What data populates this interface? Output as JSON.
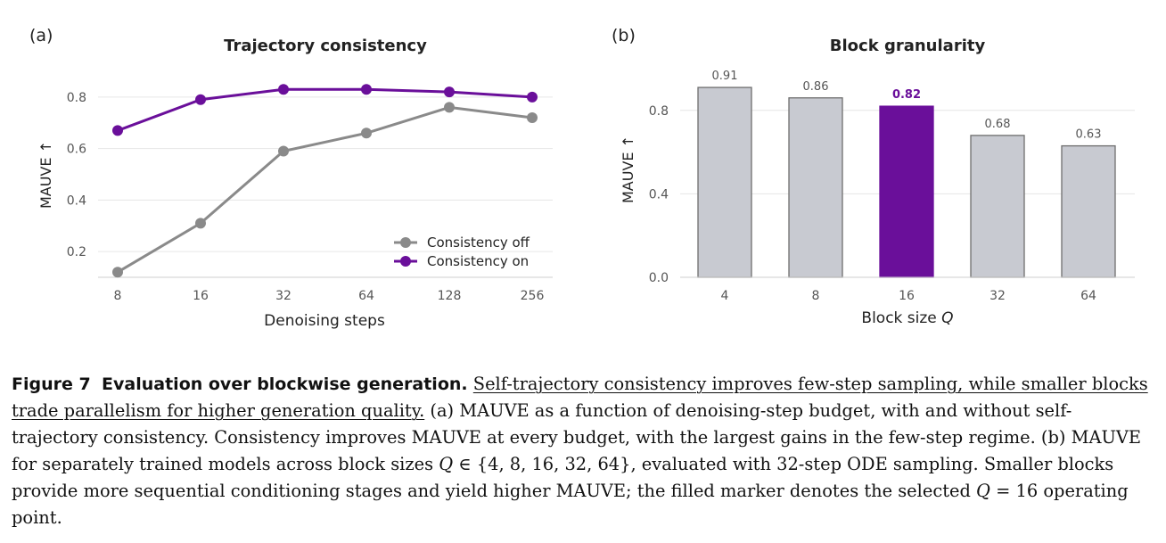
{
  "figure": {
    "panel_a_label": "(a)",
    "panel_b_label": "(b)"
  },
  "chart_data": [
    {
      "type": "line",
      "title": "Trajectory consistency",
      "xlabel": "Denoising steps",
      "ylabel": "MAUVE ↑",
      "x": [
        8,
        16,
        32,
        64,
        128,
        256
      ],
      "x_tick_labels": [
        "8",
        "16",
        "32",
        "64",
        "128",
        "256"
      ],
      "x_scale": "log2",
      "y_ticks": [
        "0.2",
        "0.4",
        "0.6",
        "0.8"
      ],
      "ylim": [
        0.1,
        0.9
      ],
      "grid": "horizontal",
      "legend_position": "bottom-right",
      "series": [
        {
          "name": "Consistency off",
          "color": "#8a8a8a",
          "values": [
            0.12,
            0.31,
            0.59,
            0.66,
            0.76,
            0.72
          ]
        },
        {
          "name": "Consistency on",
          "color": "#6a0f9a",
          "values": [
            0.67,
            0.79,
            0.83,
            0.83,
            0.82,
            0.8
          ]
        }
      ]
    },
    {
      "type": "bar",
      "title": "Block granularity",
      "xlabel": "Block size Q",
      "xlabel_plain": "Block size ",
      "xlabel_var": "Q",
      "ylabel": "MAUVE ↑",
      "categories": [
        "4",
        "8",
        "16",
        "32",
        "64"
      ],
      "values": [
        0.91,
        0.86,
        0.82,
        0.68,
        0.63
      ],
      "value_labels": [
        "0.91",
        "0.86",
        "0.82",
        "0.68",
        "0.63"
      ],
      "highlight_index": 2,
      "bar_color": "#c8cad1",
      "highlight_color": "#6a0f9a",
      "y_ticks": [
        "0.0",
        "0.4",
        "0.8"
      ],
      "ylim": [
        0,
        1.0
      ],
      "grid": "horizontal"
    }
  ],
  "caption": {
    "figure_label": "Figure 7",
    "title": "Evaluation over blockwise generation.",
    "summary": "Self-trajectory consistency improves few-step sampling, while smaller blocks trade parallelism for higher generation quality.",
    "text_a": "(a) MAUVE as a function of denoising-step budget, with and without self-trajectory consistency. Consistency improves MAUVE at every budget, with the largest gains in the few-step regime. (b) MAUVE for separately trained models across block sizes ",
    "math_set_var": "Q",
    "math_set_rest": " ∈ {4, 8, 16, 32, 64}",
    "text_b": ", evaluated with 32-step ODE sampling. Smaller blocks provide more sequential conditioning stages and yield higher MAUVE; the filled marker denotes the selected ",
    "math_eq_var": "Q",
    "math_eq_rest": " = 16",
    "text_c": " operating point."
  }
}
